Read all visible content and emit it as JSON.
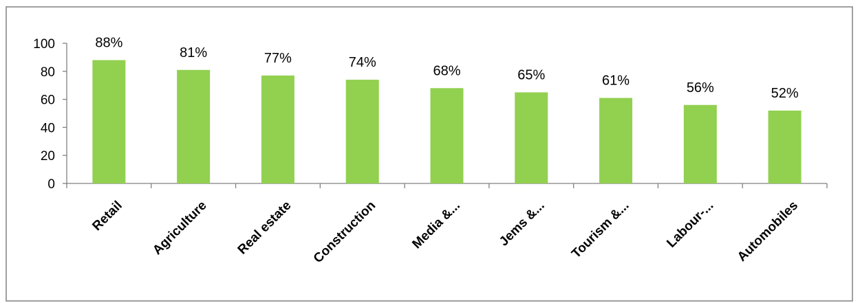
{
  "chart_data": {
    "type": "bar",
    "title": "",
    "xlabel": "",
    "ylabel": "",
    "categories": [
      "Retail",
      "Agriculture",
      "Real estate",
      "Construction",
      "Media &...",
      "Jems &...",
      "Tourism &...",
      "Labour-...",
      "Automobiles"
    ],
    "values": [
      88,
      81,
      77,
      74,
      68,
      65,
      61,
      56,
      52
    ],
    "data_labels": [
      "88%",
      "81%",
      "77%",
      "74%",
      "68%",
      "65%",
      "61%",
      "56%",
      "52%"
    ],
    "ylim": [
      0,
      100
    ],
    "yticks": [
      0,
      20,
      40,
      60,
      80,
      100
    ],
    "ytick_labels": [
      "0",
      "20",
      "40",
      "60",
      "80",
      "100"
    ],
    "grid": false,
    "legend": "none",
    "colors": {
      "bar": "#92d050",
      "axis": "#808080",
      "border": "#808080"
    }
  }
}
